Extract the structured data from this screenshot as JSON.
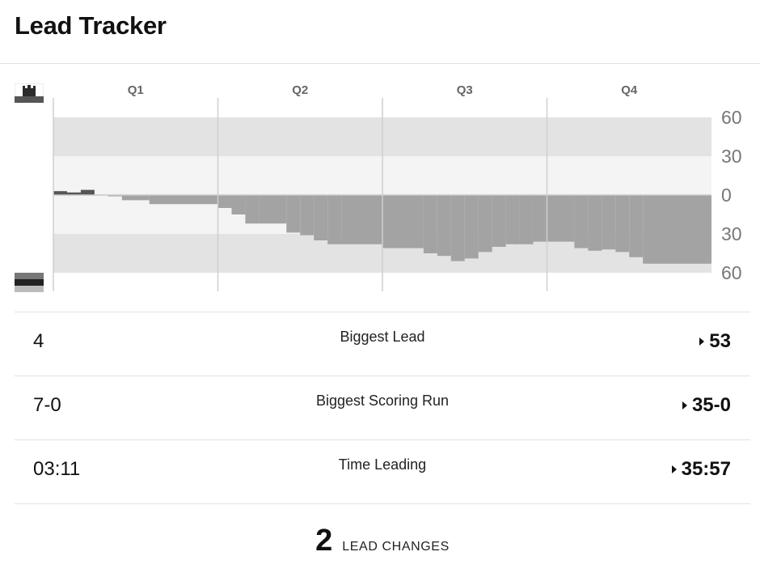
{
  "header": {
    "title": "Lead Tracker"
  },
  "teams": {
    "top": {
      "logo_icon": "team-logo-castle-icon",
      "colors": [
        "#2b2b2b",
        "#555555",
        "#999999"
      ]
    },
    "bottom": {
      "logo_icon": "team-logo-stripes-icon",
      "colors": [
        "#777777",
        "#222222",
        "#bbbbbb"
      ]
    }
  },
  "colors": {
    "band_outer": "#e3e3e3",
    "band_inner": "#f4f4f4",
    "bottom_team_area": "#a3a3a3",
    "top_team_area": "#555555",
    "divider": "#cfcfcf"
  },
  "chart_data": {
    "type": "area",
    "quarters": [
      "Q1",
      "Q2",
      "Q3",
      "Q4"
    ],
    "y_tick_labels": [
      "60",
      "30",
      "0",
      "30",
      "60"
    ],
    "y_ticks": [
      60,
      30,
      0,
      -30,
      -60
    ],
    "ylim": [
      -60,
      60
    ],
    "xlim": [
      0,
      48
    ],
    "x_unit": "minutes",
    "grid": false,
    "lead_series": [
      {
        "x": 0,
        "y": 3
      },
      {
        "x": 1,
        "y": 2
      },
      {
        "x": 2,
        "y": 4
      },
      {
        "x": 3,
        "y": 0
      },
      {
        "x": 4,
        "y": -1
      },
      {
        "x": 5,
        "y": -4
      },
      {
        "x": 7,
        "y": -7
      },
      {
        "x": 12,
        "y": -10
      },
      {
        "x": 13,
        "y": -15
      },
      {
        "x": 14,
        "y": -22
      },
      {
        "x": 15,
        "y": -22
      },
      {
        "x": 17,
        "y": -29
      },
      {
        "x": 18,
        "y": -31
      },
      {
        "x": 19,
        "y": -35
      },
      {
        "x": 20,
        "y": -38
      },
      {
        "x": 21,
        "y": -38
      },
      {
        "x": 24,
        "y": -41
      },
      {
        "x": 27,
        "y": -45
      },
      {
        "x": 28,
        "y": -47
      },
      {
        "x": 29,
        "y": -51
      },
      {
        "x": 30,
        "y": -49
      },
      {
        "x": 31,
        "y": -44
      },
      {
        "x": 32,
        "y": -40
      },
      {
        "x": 33,
        "y": -38
      },
      {
        "x": 34,
        "y": -38
      },
      {
        "x": 35,
        "y": -36
      },
      {
        "x": 38,
        "y": -41
      },
      {
        "x": 39,
        "y": -43
      },
      {
        "x": 40,
        "y": -42
      },
      {
        "x": 41,
        "y": -44
      },
      {
        "x": 42,
        "y": -48
      },
      {
        "x": 43,
        "y": -53
      },
      {
        "x": 48,
        "y": -53
      }
    ]
  },
  "stats": [
    {
      "label": "Biggest Lead",
      "left": "4",
      "right": "53"
    },
    {
      "label": "Biggest Scoring Run",
      "left": "7-0",
      "right": "35-0"
    },
    {
      "label": "Time Leading",
      "left": "03:11",
      "right": "35:57"
    }
  ],
  "lead_changes": {
    "count": "2",
    "label": "LEAD CHANGES"
  }
}
